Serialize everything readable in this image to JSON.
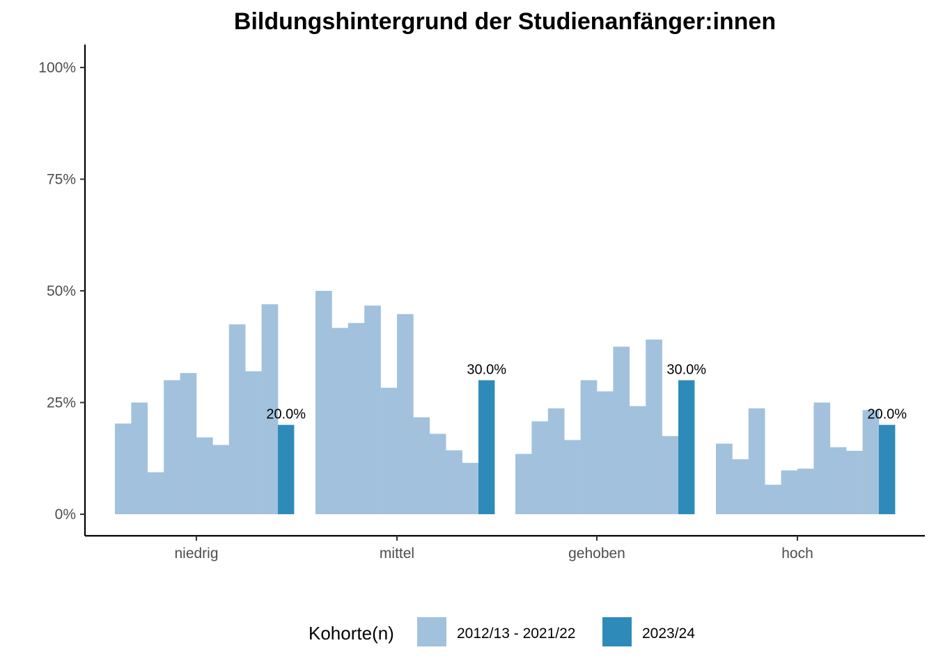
{
  "chart_data": {
    "type": "bar",
    "title": "Bildungshintergrund der Studienanfänger:innen",
    "xlabel": "",
    "ylabel": "",
    "ylim": [
      0,
      1.05
    ],
    "y_ticks": [
      0,
      0.25,
      0.5,
      0.75,
      1.0
    ],
    "y_tick_labels": [
      "0%",
      "25%",
      "50%",
      "75%",
      "100%"
    ],
    "grid": false,
    "categories": [
      "niedrig",
      "mittel",
      "gehoben",
      "hoch"
    ],
    "series": [
      {
        "name": "2012/13 - 2021/22",
        "color": "#a2c1dd",
        "values": [
          [
            0.203,
            0.25,
            0.094,
            0.3,
            0.316,
            0.172,
            0.155,
            0.425,
            0.32,
            0.47
          ],
          [
            0.5,
            0.417,
            0.428,
            0.467,
            0.283,
            0.448,
            0.217,
            0.18,
            0.143,
            0.115
          ],
          [
            0.135,
            0.208,
            0.237,
            0.166,
            0.3,
            0.275,
            0.375,
            0.242,
            0.391,
            0.175
          ],
          [
            0.158,
            0.123,
            0.237,
            0.066,
            0.098,
            0.102,
            0.25,
            0.15,
            0.142,
            0.233
          ]
        ]
      },
      {
        "name": "2023/24",
        "color": "#2e8bb9",
        "values": [
          0.2,
          0.3,
          0.3,
          0.2
        ],
        "labels": [
          "20.0%",
          "30.0%",
          "30.0%",
          "20.0%"
        ]
      }
    ],
    "legend": {
      "title": "Kohorte(n)",
      "placement": "bottom"
    }
  }
}
